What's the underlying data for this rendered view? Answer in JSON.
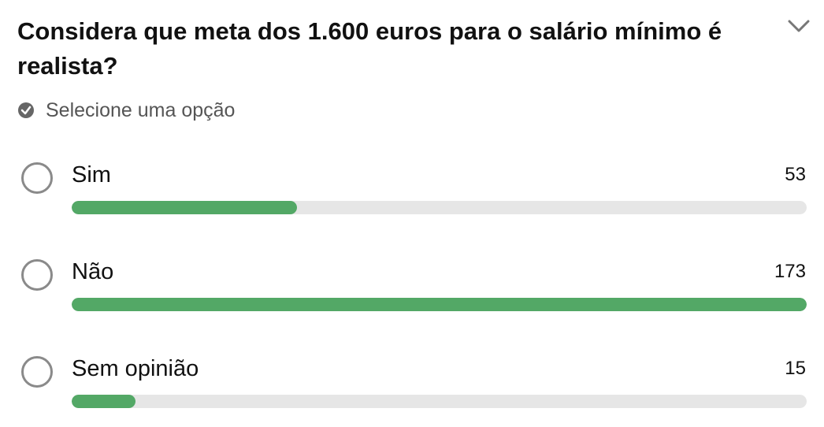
{
  "question": {
    "lines": [
      "Considera que meta dos 1.600 euros para o salário mínimo é",
      "realista?"
    ]
  },
  "hint": "Selecione uma opção",
  "options": [
    {
      "label": "Sim",
      "count": 53
    },
    {
      "label": "Não",
      "count": 173
    },
    {
      "label": "Sem opinião",
      "count": 15
    }
  ]
}
